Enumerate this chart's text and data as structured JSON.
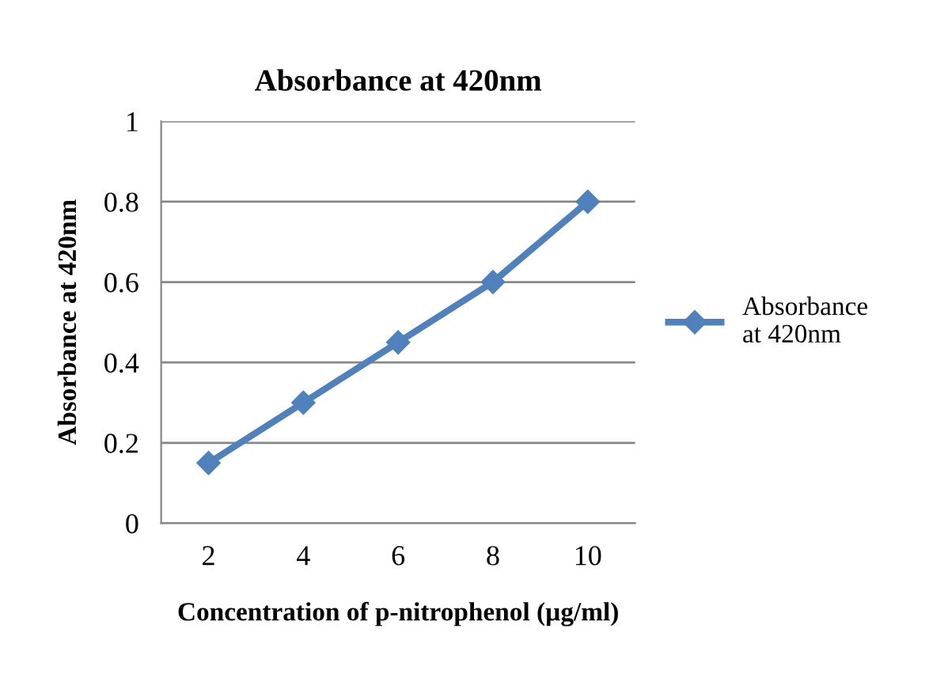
{
  "chart_data": {
    "type": "line",
    "title": "Absorbance at 420nm",
    "xlabel": "Concentration of p-nitrophenol (µg/ml)",
    "ylabel": "Absorbance at 420nm",
    "categories": [
      "2",
      "4",
      "6",
      "8",
      "10"
    ],
    "series": [
      {
        "name": "Absorbance at 420nm",
        "color": "#4f81bd",
        "values": [
          0.15,
          0.3,
          0.45,
          0.6,
          0.8
        ]
      }
    ],
    "ylim": [
      0,
      1
    ],
    "yticks": [
      0,
      {
        "value": 0.2,
        "label": "0.2"
      },
      {
        "value": 0.4,
        "label": "0.4"
      },
      {
        "value": 0.6,
        "label": "0.6"
      },
      {
        "value": 0.8,
        "label": "0.8"
      },
      1
    ],
    "grid": "y",
    "legend": "right",
    "marker": "diamond",
    "line_style": "solid"
  }
}
